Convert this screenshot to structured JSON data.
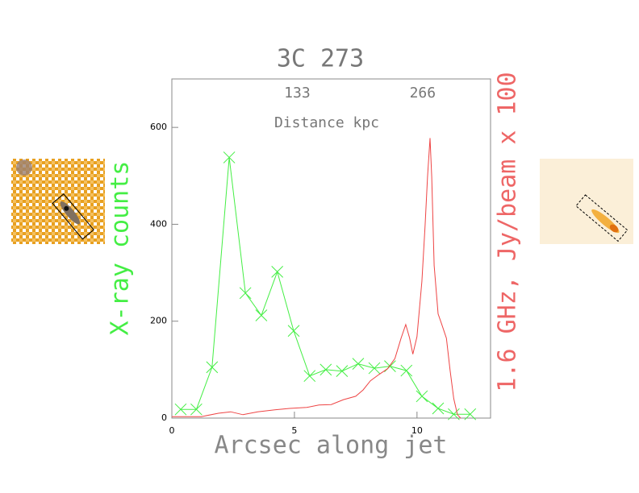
{
  "chart_data": {
    "type": "line",
    "title": "3C 273",
    "xlabel": "Arcsec along jet",
    "ylabel": "X-ray counts",
    "y2label": "1.6 GHz, Jy/beam x 100",
    "x2label": "Distance kpc",
    "xlim": [
      0,
      13
    ],
    "xticks": [
      0,
      5,
      10
    ],
    "ylim": [
      0,
      700
    ],
    "yticks": [
      0,
      200,
      400,
      600
    ],
    "x2lim": [
      0,
      338
    ],
    "x2ticks": [
      133,
      266
    ],
    "series": [
      {
        "name": "X-ray counts",
        "color": "#44ee44",
        "marker": "x",
        "x": [
          0.36,
          1.0,
          1.64,
          2.34,
          3.0,
          3.65,
          4.3,
          4.97,
          5.62,
          6.28,
          6.94,
          7.6,
          8.26,
          8.9,
          9.57,
          10.2,
          10.86,
          11.5,
          12.17
        ],
        "values": [
          18,
          18,
          105,
          538,
          258,
          212,
          302,
          180,
          87,
          100,
          97,
          112,
          103,
          107,
          98,
          45,
          20,
          8,
          8
        ]
      },
      {
        "name": "1.6 GHz, Jy/beam x 100",
        "color": "#ee4444",
        "marker": "none",
        "x": [
          0,
          1.2,
          1.9,
          2.4,
          2.9,
          3.5,
          4.2,
          4.8,
          5.5,
          6.0,
          6.5,
          7.0,
          7.5,
          7.8,
          8.1,
          8.45,
          8.8,
          9.1,
          9.35,
          9.54,
          9.7,
          9.83,
          10.0,
          10.2,
          10.33,
          10.43,
          10.53,
          10.6,
          10.7,
          10.86,
          11.0,
          11.2,
          11.35,
          11.5,
          11.65,
          11.78
        ],
        "values": [
          3,
          3,
          10,
          13,
          7,
          13,
          17,
          20,
          22,
          27,
          28,
          38,
          45,
          58,
          77,
          90,
          102,
          123,
          165,
          193,
          165,
          132,
          168,
          282,
          398,
          498,
          578,
          498,
          315,
          215,
          195,
          165,
          98,
          40,
          7,
          0
        ]
      }
    ]
  }
}
